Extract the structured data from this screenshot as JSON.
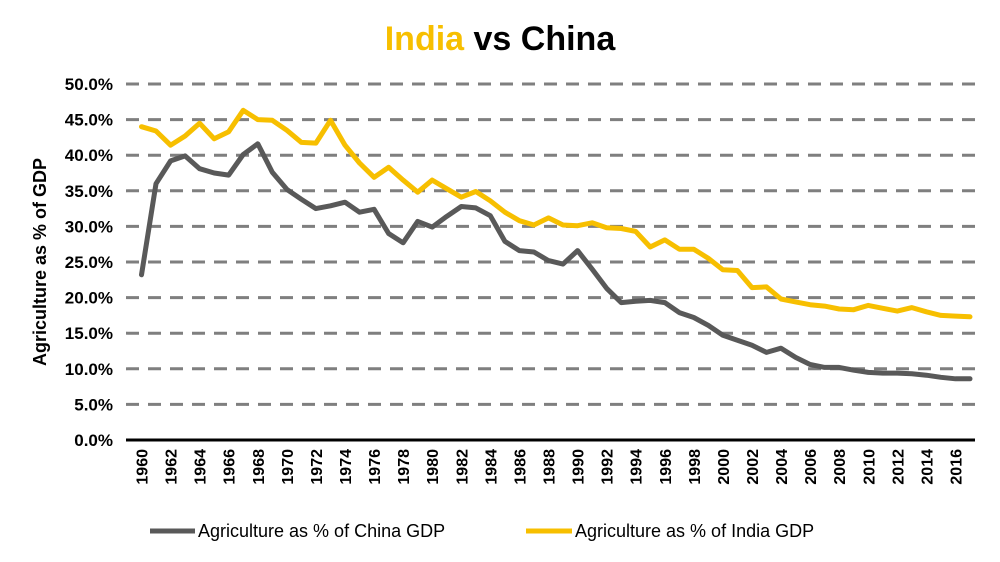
{
  "chart_data": {
    "type": "line",
    "title": {
      "part1": "India",
      "part2": " vs China",
      "part1_color": "#f7bf00",
      "part2_color": "#000000"
    },
    "ylabel": "Agriculture as % of GDP",
    "xlabel": "",
    "ylim": [
      0,
      50
    ],
    "y_ticks": [
      "0.0%",
      "5.0%",
      "10.0%",
      "15.0%",
      "20.0%",
      "25.0%",
      "30.0%",
      "35.0%",
      "40.0%",
      "45.0%",
      "50.0%"
    ],
    "x_tick_labels": [
      "1960",
      "1962",
      "1964",
      "1966",
      "1968",
      "1970",
      "1972",
      "1974",
      "1976",
      "1978",
      "1980",
      "1982",
      "1984",
      "1986",
      "1988",
      "1990",
      "1992",
      "1994",
      "1996",
      "1998",
      "2000",
      "2002",
      "2004",
      "2006",
      "2008",
      "2010",
      "2012",
      "2014",
      "2016"
    ],
    "grid": true,
    "legend_position": "bottom",
    "x": [
      1960,
      1961,
      1962,
      1963,
      1964,
      1965,
      1966,
      1967,
      1968,
      1969,
      1970,
      1971,
      1972,
      1973,
      1974,
      1975,
      1976,
      1977,
      1978,
      1979,
      1980,
      1981,
      1982,
      1983,
      1984,
      1985,
      1986,
      1987,
      1988,
      1989,
      1990,
      1991,
      1992,
      1993,
      1994,
      1995,
      1996,
      1997,
      1998,
      1999,
      2000,
      2001,
      2002,
      2003,
      2004,
      2005,
      2006,
      2007,
      2008,
      2009,
      2010,
      2011,
      2012,
      2013,
      2014,
      2015,
      2016,
      2017
    ],
    "series": [
      {
        "name": "Agriculture as % of China GDP",
        "color": "#595959",
        "values": [
          23.2,
          36.0,
          39.2,
          39.9,
          38.1,
          37.5,
          37.2,
          40.1,
          41.6,
          37.6,
          35.2,
          33.8,
          32.5,
          32.9,
          33.4,
          32.0,
          32.4,
          29.0,
          27.7,
          30.7,
          29.9,
          31.4,
          32.8,
          32.6,
          31.5,
          27.9,
          26.6,
          26.4,
          25.2,
          24.7,
          26.6,
          24.0,
          21.3,
          19.3,
          19.5,
          19.6,
          19.3,
          17.9,
          17.2,
          16.1,
          14.7,
          14.0,
          13.3,
          12.3,
          12.9,
          11.6,
          10.6,
          10.2,
          10.2,
          9.8,
          9.5,
          9.4,
          9.4,
          9.3,
          9.1,
          8.8,
          8.6,
          8.6
        ]
      },
      {
        "name": "Agriculture as % of India GDP",
        "color": "#f7bf00",
        "values": [
          44.0,
          43.4,
          41.4,
          42.7,
          44.5,
          42.3,
          43.3,
          46.3,
          45.0,
          44.9,
          43.5,
          41.8,
          41.7,
          44.9,
          41.4,
          38.9,
          36.9,
          38.3,
          36.5,
          34.8,
          36.5,
          35.3,
          34.1,
          34.9,
          33.6,
          32.0,
          30.8,
          30.2,
          31.2,
          30.2,
          30.1,
          30.5,
          29.8,
          29.7,
          29.3,
          27.1,
          28.1,
          26.8,
          26.8,
          25.5,
          23.9,
          23.8,
          21.4,
          21.5,
          19.8,
          19.4,
          19.0,
          18.8,
          18.4,
          18.3,
          18.9,
          18.5,
          18.1,
          18.6,
          18.0,
          17.5,
          17.4,
          17.3
        ]
      }
    ]
  }
}
